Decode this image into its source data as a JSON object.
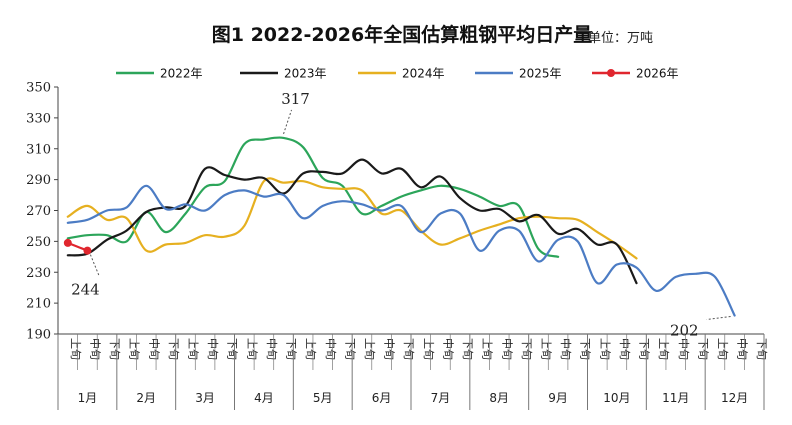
{
  "chart_data": {
    "type": "line",
    "title": "图1 2022-2026年全国估算粗钢平均日产量",
    "unit_label": "单位：万吨",
    "ylim": [
      190,
      350
    ],
    "yticks": [
      190,
      210,
      230,
      250,
      270,
      290,
      310,
      330,
      350
    ],
    "period_labels": [
      "上旬",
      "中旬",
      "下旬"
    ],
    "months": [
      "1月",
      "2月",
      "3月",
      "4月",
      "5月",
      "6月",
      "7月",
      "8月",
      "9月",
      "10月",
      "11月",
      "12月"
    ],
    "grid": false,
    "legend_position": "top",
    "series": [
      {
        "name": "2022年",
        "color": "#2ca55a",
        "values": [
          252,
          254,
          254,
          250,
          269,
          256,
          268,
          285,
          289,
          313,
          316,
          317,
          311,
          291,
          286,
          268,
          273,
          279,
          283,
          286,
          284,
          279,
          273,
          273,
          245,
          240
        ]
      },
      {
        "name": "2023年",
        "color": "#1a1a1a",
        "values": [
          241,
          242,
          251,
          257,
          269,
          272,
          273,
          297,
          293,
          290,
          291,
          281,
          294,
          295,
          294,
          303,
          294,
          297,
          285,
          292,
          278,
          270,
          271,
          263,
          267,
          255,
          258,
          248,
          248,
          223
        ]
      },
      {
        "name": "2024年",
        "color": "#e6b020",
        "values": [
          266,
          273,
          264,
          265,
          244,
          248,
          249,
          254,
          253,
          260,
          289,
          288,
          289,
          285,
          284,
          283,
          268,
          270,
          257,
          248,
          252,
          257,
          261,
          265,
          266,
          265,
          264,
          256,
          248,
          239
        ]
      },
      {
        "name": "2025年",
        "color": "#4c7cc4",
        "values": [
          262,
          264,
          270,
          272,
          286,
          271,
          274,
          270,
          280,
          283,
          279,
          280,
          265,
          273,
          276,
          274,
          270,
          273,
          256,
          268,
          268,
          244,
          257,
          257,
          237,
          251,
          250,
          223,
          235,
          233,
          218,
          227,
          229,
          227,
          202
        ]
      },
      {
        "name": "2026年",
        "color": "#e0262e",
        "values": [
          249,
          244
        ]
      }
    ],
    "annotations": [
      {
        "text": "317",
        "series": "2022年",
        "index": 11
      },
      {
        "text": "244",
        "series": "2026年",
        "index": 1
      },
      {
        "text": "202",
        "series": "2025年",
        "index": 34
      }
    ]
  }
}
